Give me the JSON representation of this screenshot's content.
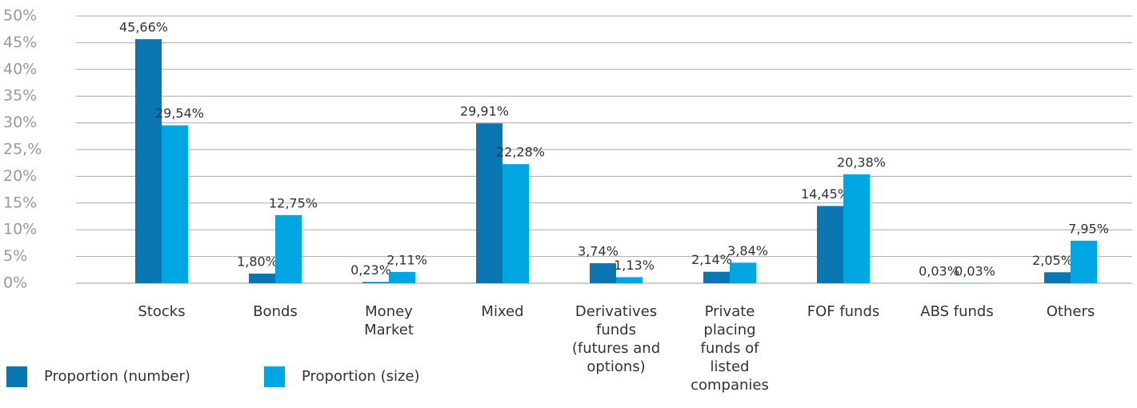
{
  "chart_data": {
    "type": "bar",
    "categories": [
      "Stocks",
      "Bonds",
      "Money Market",
      "Mixed",
      "Derivatives funds (futures and options)",
      "Private placing funds of listed companies",
      "FOF funds",
      "ABS funds",
      "Others"
    ],
    "series": [
      {
        "name": "Proportion (number)",
        "color": "#0a77b3",
        "values": [
          45.66,
          1.8,
          0.23,
          29.91,
          3.74,
          2.14,
          14.45,
          0.03,
          2.05
        ],
        "value_labels": [
          "45,66%",
          "1,80%",
          "0,23%",
          "29,91%",
          "3,74%",
          "2,14%",
          "14,45%",
          "0,03%",
          "2,05%"
        ]
      },
      {
        "name": "Proportion (size)",
        "color": "#00a6e2",
        "values": [
          29.54,
          12.75,
          2.11,
          22.28,
          1.13,
          3.84,
          20.38,
          0.03,
          7.95
        ],
        "value_labels": [
          "29,54%",
          "12,75%",
          "2,11%",
          "22,28%",
          "1,13%",
          "3,84%",
          "20,38%",
          "0,03%",
          "7,95%"
        ]
      }
    ],
    "ylim": [
      0,
      50
    ],
    "yticks": [
      {
        "value": 0,
        "label": "0%"
      },
      {
        "value": 5,
        "label": "5%"
      },
      {
        "value": 10,
        "label": "10%"
      },
      {
        "value": 15,
        "label": "15%"
      },
      {
        "value": 20,
        "label": "20%"
      },
      {
        "value": 25,
        "label": "25,%"
      },
      {
        "value": 30,
        "label": "30%"
      },
      {
        "value": 35,
        "label": "35%"
      },
      {
        "value": 40,
        "label": "40%"
      },
      {
        "value": 45,
        "label": "45%"
      },
      {
        "value": 50,
        "label": "50%"
      }
    ],
    "grid": true,
    "legend": "bottom-left"
  }
}
